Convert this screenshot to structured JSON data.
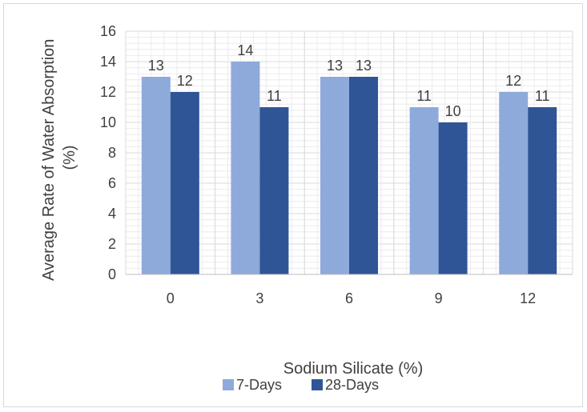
{
  "chart_data": {
    "type": "bar",
    "categories": [
      "0",
      "3",
      "6",
      "9",
      "12"
    ],
    "series": [
      {
        "name": "7-Days",
        "values": [
          13,
          14,
          13,
          11,
          12
        ],
        "color": "#8eaadb"
      },
      {
        "name": "28-Days",
        "values": [
          12,
          11,
          13,
          10,
          11
        ],
        "color": "#2f5597"
      }
    ],
    "ylim": [
      0,
      16
    ],
    "yticks": [
      0,
      2,
      4,
      6,
      8,
      10,
      12,
      14,
      16
    ],
    "xlabel": "Sodium Silicate (%)",
    "ylabel_lines": [
      "Average Rate of Water Absorption",
      "(%)"
    ],
    "grid": true,
    "legend": "bottom",
    "data_labels": true
  }
}
